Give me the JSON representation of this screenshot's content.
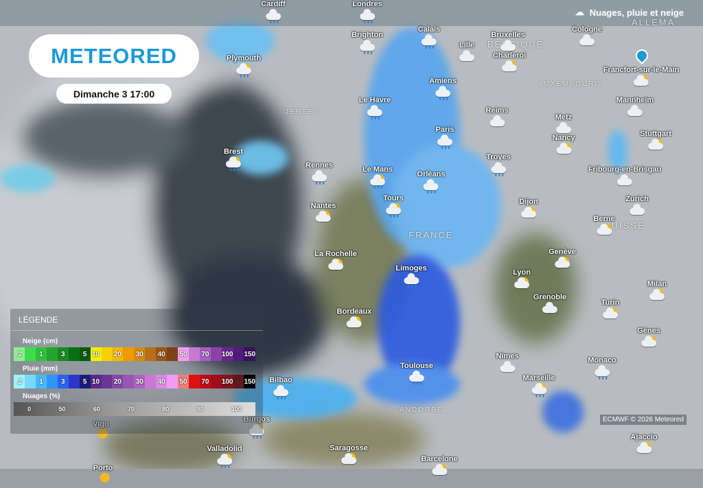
{
  "header": {
    "layer_title": "Nuages, pluie et neige",
    "layer_icon": "cloud-rain-snow-icon"
  },
  "logo": "METEORED",
  "date": "Dimanche 3 17:00",
  "map_labels": [
    "BELGIQUE",
    "LUXEMBOURG",
    "JERSEY",
    "FRANCE",
    "SUISSE",
    "ALLEMA",
    "ANDORRE"
  ],
  "cities": [
    {
      "name": "Cardiff",
      "icon": "rain"
    },
    {
      "name": "Londres",
      "icon": "rain"
    },
    {
      "name": "Brighton",
      "icon": "rain"
    },
    {
      "name": "Calais",
      "icon": "rain"
    },
    {
      "name": "Bruxelles",
      "icon": "cloud"
    },
    {
      "name": "Lille",
      "icon": "cloud"
    },
    {
      "name": "Charleroi",
      "icon": "sun-cloud"
    },
    {
      "name": "Cologne",
      "icon": "cloud"
    },
    {
      "name": "Plymouth",
      "icon": "sun-rain"
    },
    {
      "name": "Francfort-sur-le-Main",
      "icon": "sun-cloud"
    },
    {
      "name": "Amiens",
      "icon": "rain"
    },
    {
      "name": "Le Havre",
      "icon": "rain"
    },
    {
      "name": "Mannheim",
      "icon": "cloud"
    },
    {
      "name": "Reims",
      "icon": "cloud"
    },
    {
      "name": "Metz",
      "icon": "cloud"
    },
    {
      "name": "Paris",
      "icon": "rain"
    },
    {
      "name": "Nancy",
      "icon": "sun-cloud"
    },
    {
      "name": "Stuttgart",
      "icon": "sun-cloud"
    },
    {
      "name": "Brest",
      "icon": "sun-rain"
    },
    {
      "name": "Troyes",
      "icon": "rain"
    },
    {
      "name": "Rennes",
      "icon": "rain"
    },
    {
      "name": "Le Mans",
      "icon": "sun-rain"
    },
    {
      "name": "Orléans",
      "icon": "rain"
    },
    {
      "name": "Fribourg-en-Brisgau",
      "icon": "cloud"
    },
    {
      "name": "Tours",
      "icon": "sun-rain"
    },
    {
      "name": "Dijon",
      "icon": "sun-cloud"
    },
    {
      "name": "Zurich",
      "icon": "cloud"
    },
    {
      "name": "Nantes",
      "icon": "sun-cloud"
    },
    {
      "name": "Berne",
      "icon": "sun-cloud"
    },
    {
      "name": "Genève",
      "icon": "sun-cloud"
    },
    {
      "name": "La Rochelle",
      "icon": "sun-cloud"
    },
    {
      "name": "Limoges",
      "icon": "rain"
    },
    {
      "name": "Lyon",
      "icon": "sun-cloud"
    },
    {
      "name": "Milan",
      "icon": "sun-cloud"
    },
    {
      "name": "Grenoble",
      "icon": "cloud"
    },
    {
      "name": "Turin",
      "icon": "sun-cloud"
    },
    {
      "name": "Bordeaux",
      "icon": "sun-cloud"
    },
    {
      "name": "Gênes",
      "icon": "sun-cloud"
    },
    {
      "name": "Nîmes",
      "icon": "cloud"
    },
    {
      "name": "Monaco",
      "icon": "rain"
    },
    {
      "name": "Toulouse",
      "icon": "rain"
    },
    {
      "name": "Marseille",
      "icon": "sun-rain"
    },
    {
      "name": "Bilbao",
      "icon": "rain"
    },
    {
      "name": "Burgos",
      "icon": "sun-rain"
    },
    {
      "name": "Vigo",
      "icon": "sun"
    },
    {
      "name": "Ajaccio",
      "icon": "sun-cloud"
    },
    {
      "name": "Valladolid",
      "icon": "sun-rain"
    },
    {
      "name": "Saragosse",
      "icon": "sun-cloud"
    },
    {
      "name": "Barcelone",
      "icon": "sun-cloud"
    },
    {
      "name": "Porto",
      "icon": "sun"
    }
  ],
  "legend": {
    "title": "LÉGENDE",
    "snow": {
      "label": "Neige (cm)",
      "stops": [
        {
          "v": ".2",
          "c": "#90ee90"
        },
        {
          "v": "",
          "c": "#3ddc4a"
        },
        {
          "v": "1",
          "c": "#2ec23a"
        },
        {
          "v": "",
          "c": "#22a52e"
        },
        {
          "v": "3",
          "c": "#168a22"
        },
        {
          "v": "",
          "c": "#0a6e14"
        },
        {
          "v": "5",
          "c": "#045a0c"
        },
        {
          "v": "10",
          "c": "#f6f000"
        },
        {
          "v": "",
          "c": "#f8d000"
        },
        {
          "v": "20",
          "c": "#f6b800"
        },
        {
          "v": "",
          "c": "#f09800"
        },
        {
          "v": "30",
          "c": "#d88a10"
        },
        {
          "v": "",
          "c": "#b86e1a"
        },
        {
          "v": "40",
          "c": "#9a5618"
        },
        {
          "v": "",
          "c": "#7a4216"
        },
        {
          "v": "50",
          "c": "#f49ef0"
        },
        {
          "v": "",
          "c": "#c87ad0"
        },
        {
          "v": "70",
          "c": "#a85ec0"
        },
        {
          "v": "",
          "c": "#8a42a8"
        },
        {
          "v": "100",
          "c": "#6a2690"
        },
        {
          "v": "",
          "c": "#521a7a"
        },
        {
          "v": "150",
          "c": "#3a0e60"
        }
      ]
    },
    "rain": {
      "label": "Pluie (mm)",
      "stops": [
        {
          "v": ".2",
          "c": "#9ef4f8"
        },
        {
          "v": "",
          "c": "#7ad8fa"
        },
        {
          "v": "1",
          "c": "#46baf8"
        },
        {
          "v": "",
          "c": "#2e96f8"
        },
        {
          "v": "3",
          "c": "#2c62ee"
        },
        {
          "v": "",
          "c": "#2a36c8"
        },
        {
          "v": "5",
          "c": "#1c1c7a"
        },
        {
          "v": "10",
          "c": "#5a2a8a"
        },
        {
          "v": "",
          "c": "#6a3696"
        },
        {
          "v": "20",
          "c": "#8448a6"
        },
        {
          "v": "",
          "c": "#9a56b4"
        },
        {
          "v": "30",
          "c": "#b064c0"
        },
        {
          "v": "",
          "c": "#c878d0"
        },
        {
          "v": "40",
          "c": "#dc8ae0"
        },
        {
          "v": "",
          "c": "#f49cf4"
        },
        {
          "v": "50",
          "c": "#f07c7c"
        },
        {
          "v": "",
          "c": "#e01010"
        },
        {
          "v": "70",
          "c": "#c00c14"
        },
        {
          "v": "",
          "c": "#a00c18"
        },
        {
          "v": "100",
          "c": "#801420"
        },
        {
          "v": "",
          "c": "#601820"
        },
        {
          "v": "150",
          "c": "#000000"
        }
      ]
    },
    "clouds": {
      "label": "Nuages (%)",
      "ticks": [
        "0",
        "50",
        "60",
        "70",
        "80",
        "90",
        "100"
      ]
    }
  },
  "credit": "ECMWF © 2026 Meteored"
}
